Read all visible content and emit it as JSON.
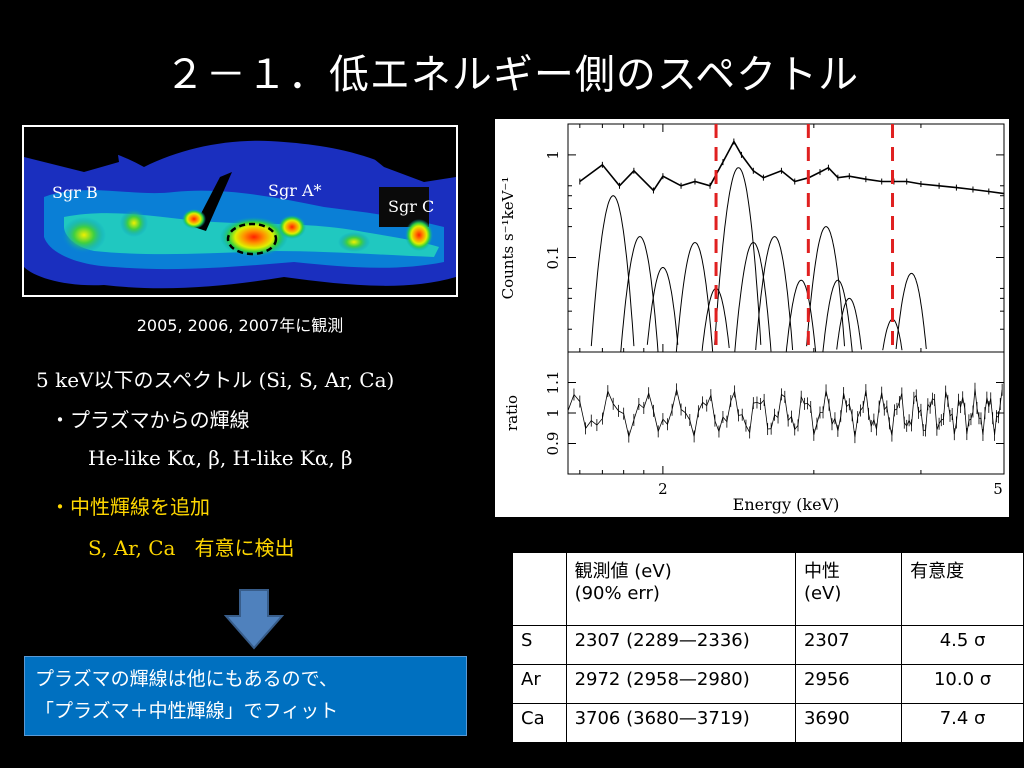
{
  "slide": {
    "title": "２－１．低エネルギー側のスペクトル"
  },
  "map": {
    "labels": {
      "sgr_b": "Sgr B",
      "sgr_a": "Sgr A*",
      "sgr_c": "Sgr C"
    },
    "caption": "2005, 2006, 2007年に観測"
  },
  "text": {
    "heading": "5 keV以下のスペクトル (Si, S, Ar, Ca)",
    "bullet1": "・プラズマからの輝線",
    "lines1": "He-like Kα, β,  H-like Kα, β",
    "bullet2": "・中性輝線を追加",
    "lines2_elements": "S, Ar, Ca",
    "lines2_note": "有意に検出"
  },
  "callout": {
    "line1": "プラズマの輝線は他にもあるので、",
    "line2": "「プラズマ＋中性輝線」でフィット"
  },
  "chart_data": {
    "type": "line",
    "xlabel": "Energy (keV)",
    "ylabel_top": "Counts s⁻¹keV⁻¹",
    "ylabel_bottom": "ratio",
    "x_scale": "log",
    "xlim": [
      1.55,
      5
    ],
    "ylim_top": [
      0.012,
      2
    ],
    "y_scale_top": "log",
    "ylim_bottom": [
      0.8,
      1.2
    ],
    "x_tick_labels": [
      "2",
      "5"
    ],
    "x_ticks": [
      2,
      5
    ],
    "y_tick_labels_top": [
      "0.1",
      "1"
    ],
    "y_ticks_top": [
      0.1,
      1
    ],
    "y_tick_labels_bottom": [
      "0.9",
      "1",
      "1.1"
    ],
    "y_ticks_bottom": [
      0.9,
      1,
      1.1
    ],
    "dashed_lines_keV": [
      2.307,
      2.956,
      3.706
    ],
    "dashed_color": "#e02020",
    "series": [
      {
        "role": "total model",
        "x": [
          1.6,
          1.7,
          1.78,
          1.85,
          1.95,
          2.0,
          2.1,
          2.18,
          2.27,
          2.35,
          2.42,
          2.47,
          2.55,
          2.62,
          2.75,
          2.85,
          2.96,
          3.05,
          3.12,
          3.2,
          3.3,
          3.45,
          3.6,
          3.72,
          3.85,
          4.0,
          4.2,
          4.4,
          4.6,
          4.8,
          5.0
        ],
        "y": [
          0.55,
          0.8,
          0.5,
          0.7,
          0.45,
          0.62,
          0.5,
          0.55,
          0.5,
          0.85,
          1.35,
          1.0,
          0.7,
          0.6,
          0.7,
          0.55,
          0.6,
          0.68,
          0.75,
          0.6,
          0.62,
          0.58,
          0.55,
          0.55,
          0.55,
          0.52,
          0.5,
          0.48,
          0.46,
          0.44,
          0.42
        ]
      }
    ],
    "line_components": [
      {
        "center": 1.75,
        "peak": 0.4
      },
      {
        "center": 1.88,
        "peak": 0.16
      },
      {
        "center": 2.0,
        "peak": 0.08
      },
      {
        "center": 2.18,
        "peak": 0.14
      },
      {
        "center": 2.307,
        "peak": 0.05
      },
      {
        "center": 2.45,
        "peak": 0.75
      },
      {
        "center": 2.55,
        "peak": 0.14
      },
      {
        "center": 2.7,
        "peak": 0.16
      },
      {
        "center": 2.9,
        "peak": 0.06
      },
      {
        "center": 3.1,
        "peak": 0.2
      },
      {
        "center": 3.2,
        "peak": 0.06
      },
      {
        "center": 3.3,
        "peak": 0.04
      },
      {
        "center": 3.706,
        "peak": 0.025
      },
      {
        "center": 3.9,
        "peak": 0.07
      }
    ]
  },
  "table": {
    "headers": [
      "",
      "観測値  (eV)\n(90% err)",
      "中性\n(eV)",
      "有意度"
    ],
    "rows": [
      [
        "S",
        "2307 (2289—2336)",
        "2307",
        "4.5 σ"
      ],
      [
        "Ar",
        "2972 (2958—2980)",
        "2956",
        "10.0 σ"
      ],
      [
        "Ca",
        "3706 (3680—3719)",
        "3690",
        "7.4 σ"
      ]
    ]
  },
  "colors": {
    "background": "#000000",
    "highlight_text": "#ffd700",
    "callout_box": "#0070c0",
    "arrow": "#4f81bd"
  }
}
